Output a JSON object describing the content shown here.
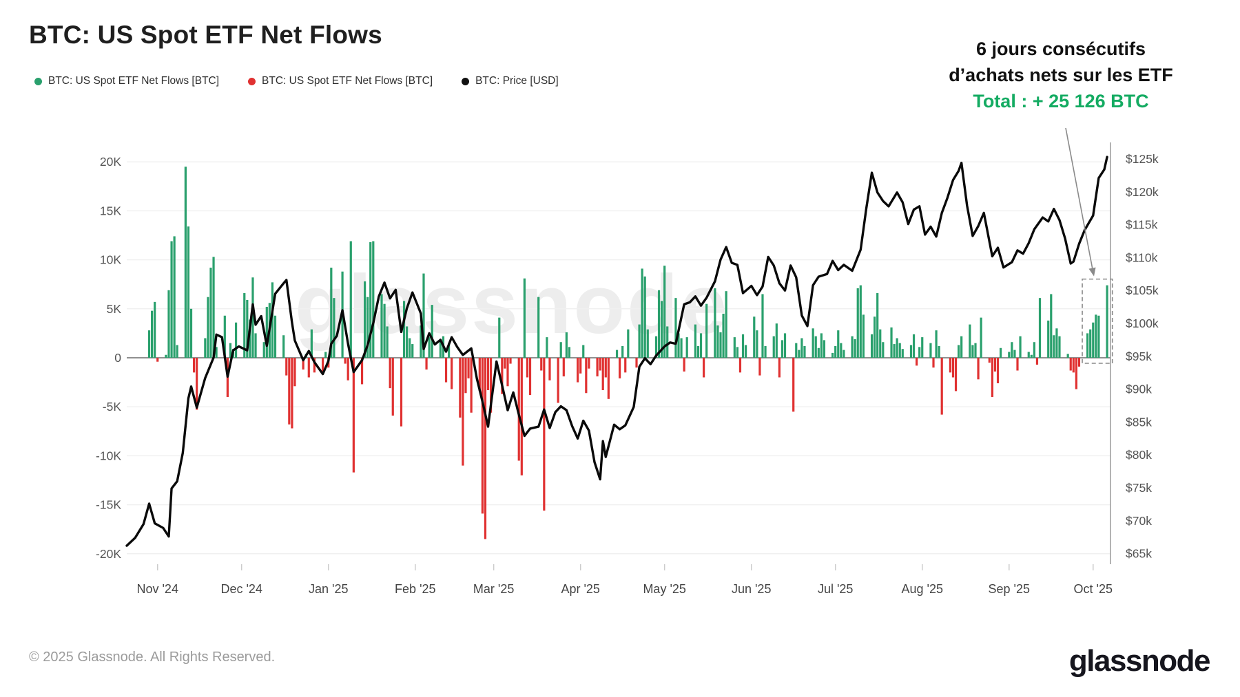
{
  "header": {
    "title": "BTC: US Spot ETF Net Flows"
  },
  "legend": [
    {
      "label": "BTC: US Spot ETF Net Flows [BTC]",
      "color": "#2aa06d",
      "icon": "green-dot"
    },
    {
      "label": "BTC: US Spot ETF Net Flows [BTC]",
      "color": "#e03131",
      "icon": "red-dot"
    },
    {
      "label": "BTC: Price [USD]",
      "color": "#111111",
      "icon": "black-dot"
    }
  ],
  "annotation": {
    "line1": "6 jours consécutifs",
    "line2": "d’achats nets sur les ETF",
    "line3": "Total : + 25 126 BTC",
    "highlight_color": "#14ab62"
  },
  "watermark": "glassnode",
  "footer": {
    "copyright": "© 2025 Glassnode. All Rights Reserved.",
    "logo": "glassnode"
  },
  "chart_data": {
    "type": "bar+line",
    "title": "BTC: US Spot ETF Net Flows",
    "x_axis": {
      "labels": [
        "Nov '24",
        "Dec '24",
        "Jan '25",
        "Feb '25",
        "Mar '25",
        "Apr '25",
        "May '25",
        "Jun '25",
        "Jul '25",
        "Aug '25",
        "Sep '25",
        "Oct '25"
      ],
      "range_start": "2024-10-21",
      "range_end": "2025-10-10"
    },
    "y_axis_left": {
      "unit": "K BTC",
      "ticks": [
        "20K",
        "15K",
        "10K",
        "5K",
        "0",
        "-5K",
        "-10K",
        "-15K",
        "-20K"
      ],
      "values": [
        20,
        15,
        10,
        5,
        0,
        -5,
        -10,
        -15,
        -20
      ]
    },
    "y_axis_right": {
      "unit": "USD",
      "ticks": [
        "$125k",
        "$120k",
        "$115k",
        "$110k",
        "$105k",
        "$100k",
        "$95k",
        "$90k",
        "$85k",
        "$80k",
        "$75k",
        "$70k",
        "$65k"
      ],
      "values": [
        125,
        120,
        115,
        110,
        105,
        100,
        95,
        90,
        85,
        80,
        75,
        70,
        65
      ]
    },
    "series": [
      {
        "name": "BTC: US Spot ETF Net Flows [BTC]",
        "type": "bar",
        "unit": "K BTC per day",
        "frequency": "weekdays",
        "start_date": "2024-10-29",
        "positive_color": "#2aa06d",
        "negative_color": "#e03131",
        "values": [
          2.8,
          4.8,
          5.7,
          -0.4,
          0.3,
          6.9,
          11.9,
          12.4,
          1.3,
          19.5,
          13.4,
          5.0,
          -1.5,
          -5.3,
          2.0,
          6.2,
          9.2,
          10.3,
          1.1,
          4.3,
          -4.0,
          1.5,
          0.9,
          3.6,
          6.6,
          5.9,
          3.9,
          8.2,
          2.5,
          1.6,
          5.2,
          5.6,
          7.7,
          4.3,
          2.3,
          -1.8,
          -6.8,
          -7.2,
          -2.9,
          -1.2,
          0.4,
          -2.0,
          2.9,
          -1.5,
          -1.6,
          0.6,
          -1.0,
          9.2,
          6.1,
          8.8,
          -0.6,
          -2.3,
          11.9,
          -11.7,
          -2.7,
          7.8,
          6.2,
          11.8,
          11.9,
          6.5,
          5.5,
          3.2,
          -3.1,
          -5.9,
          -7.0,
          5.8,
          3.2,
          2.0,
          1.4,
          3.3,
          8.6,
          -1.2,
          2.1,
          5.4,
          1.8,
          2.2,
          -2.5,
          1.5,
          -3.2,
          -6.1,
          -11.0,
          -3.6,
          -2.1,
          -5.6,
          -3.4,
          -15.9,
          -18.5,
          -3.3,
          -5.6,
          4.1,
          -3.7,
          -1.1,
          -2.9,
          -0.6,
          -10.5,
          -12.0,
          8.1,
          -2.0,
          -3.8,
          6.2,
          -1.3,
          -15.6,
          2.1,
          -2.3,
          -4.6,
          1.6,
          -1.9,
          2.6,
          1.1,
          -2.5,
          -1.6,
          1.3,
          -3.6,
          -1.1,
          -1.9,
          -1.3,
          -3.3,
          -2.0,
          -4.2,
          0.8,
          -2.1,
          1.2,
          -1.5,
          2.9,
          -1.0,
          3.4,
          9.1,
          8.3,
          2.9,
          2.2,
          6.9,
          5.8,
          9.4,
          3.2,
          6.1,
          2.5,
          2.0,
          -1.4,
          2.1,
          3.4,
          1.2,
          2.5,
          -2.0,
          5.5,
          7.1,
          3.3,
          2.6,
          4.5,
          6.8,
          2.1,
          1.1,
          -1.5,
          2.4,
          1.3,
          4.2,
          2.8,
          -1.8,
          6.5,
          1.2,
          2.2,
          3.5,
          -2.0,
          1.8,
          2.5,
          -5.5,
          1.5,
          0.8,
          2.0,
          1.2,
          3.0,
          2.2,
          1.0,
          2.5,
          1.8,
          0.5,
          1.2,
          2.8,
          1.5,
          0.8,
          2.2,
          1.9,
          7.1,
          7.4,
          4.4,
          2.4,
          4.2,
          6.6,
          2.9,
          1.6,
          3.1,
          1.4,
          2.0,
          1.5,
          0.9,
          1.3,
          2.4,
          -0.8,
          1.1,
          2.1,
          1.5,
          -1.0,
          2.8,
          1.2,
          -5.8,
          -1.5,
          -2.0,
          -3.4,
          1.3,
          2.2,
          3.4,
          1.3,
          1.5,
          -2.2,
          4.1,
          -0.5,
          -4.0,
          -1.4,
          -2.6,
          1.0,
          0.6,
          1.6,
          0.8,
          -1.3,
          2.2,
          0.6,
          0.3,
          1.6,
          -0.7,
          6.1,
          3.8,
          6.5,
          2.3,
          3.0,
          2.2,
          0.4,
          -1.3,
          -1.5,
          -3.2,
          -0.9,
          2.5,
          2.9,
          3.6,
          4.4,
          4.3,
          7.4
        ]
      },
      {
        "name": "BTC: Price [USD]",
        "type": "line",
        "unit": "thousand USD",
        "color": "#0a0a0a",
        "epoch": "2024-10-21",
        "points": [
          [
            0,
            66.2
          ],
          [
            3,
            67.4
          ],
          [
            6,
            69.5
          ],
          [
            8,
            72.6
          ],
          [
            10,
            69.6
          ],
          [
            13,
            68.9
          ],
          [
            15,
            67.6
          ],
          [
            16,
            74.9
          ],
          [
            18,
            76.0
          ],
          [
            20,
            80.3
          ],
          [
            22,
            88.6
          ],
          [
            23,
            90.4
          ],
          [
            25,
            87.2
          ],
          [
            28,
            91.7
          ],
          [
            31,
            94.8
          ],
          [
            32,
            98.3
          ],
          [
            34,
            97.9
          ],
          [
            36,
            91.9
          ],
          [
            38,
            95.9
          ],
          [
            40,
            96.5
          ],
          [
            43,
            95.9
          ],
          [
            45,
            102.9
          ],
          [
            46,
            99.8
          ],
          [
            48,
            101.1
          ],
          [
            50,
            96.6
          ],
          [
            53,
            104.5
          ],
          [
            56,
            106.1
          ],
          [
            57,
            106.6
          ],
          [
            59,
            100.1
          ],
          [
            60,
            97.4
          ],
          [
            63,
            94.4
          ],
          [
            65,
            95.8
          ],
          [
            67,
            94.1
          ],
          [
            70,
            92.3
          ],
          [
            72,
            94.3
          ],
          [
            73,
            96.9
          ],
          [
            75,
            98.1
          ],
          [
            77,
            102.0
          ],
          [
            79,
            96.9
          ],
          [
            81,
            92.6
          ],
          [
            84,
            94.4
          ],
          [
            86,
            96.7
          ],
          [
            88,
            100.0
          ],
          [
            90,
            104.1
          ],
          [
            92,
            106.2
          ],
          [
            94,
            103.8
          ],
          [
            96,
            105.1
          ],
          [
            98,
            98.7
          ],
          [
            100,
            102.3
          ],
          [
            102,
            104.7
          ],
          [
            105,
            101.5
          ],
          [
            106,
            96.1
          ],
          [
            108,
            98.5
          ],
          [
            110,
            96.8
          ],
          [
            112,
            97.5
          ],
          [
            114,
            95.7
          ],
          [
            116,
            97.9
          ],
          [
            118,
            96.4
          ],
          [
            120,
            95.2
          ],
          [
            123,
            96.2
          ],
          [
            125,
            91.6
          ],
          [
            127,
            88.1
          ],
          [
            129,
            84.3
          ],
          [
            132,
            94.2
          ],
          [
            134,
            90.6
          ],
          [
            136,
            86.8
          ],
          [
            138,
            89.5
          ],
          [
            140,
            86.1
          ],
          [
            142,
            82.9
          ],
          [
            144,
            84.0
          ],
          [
            147,
            84.3
          ],
          [
            149,
            86.9
          ],
          [
            151,
            84.1
          ],
          [
            153,
            86.5
          ],
          [
            155,
            87.4
          ],
          [
            157,
            86.8
          ],
          [
            159,
            84.4
          ],
          [
            161,
            82.5
          ],
          [
            163,
            85.2
          ],
          [
            165,
            83.7
          ],
          [
            167,
            78.9
          ],
          [
            169,
            76.3
          ],
          [
            170,
            82.1
          ],
          [
            171,
            79.7
          ],
          [
            174,
            84.6
          ],
          [
            176,
            83.9
          ],
          [
            178,
            84.5
          ],
          [
            181,
            87.3
          ],
          [
            183,
            93.4
          ],
          [
            185,
            94.7
          ],
          [
            187,
            93.8
          ],
          [
            189,
            95.1
          ],
          [
            192,
            96.5
          ],
          [
            194,
            97.1
          ],
          [
            196,
            96.9
          ],
          [
            199,
            102.9
          ],
          [
            201,
            103.2
          ],
          [
            203,
            104.1
          ],
          [
            205,
            102.7
          ],
          [
            207,
            103.9
          ],
          [
            210,
            106.4
          ],
          [
            212,
            109.7
          ],
          [
            214,
            111.6
          ],
          [
            216,
            109.2
          ],
          [
            218,
            108.9
          ],
          [
            220,
            104.6
          ],
          [
            223,
            105.7
          ],
          [
            225,
            104.3
          ],
          [
            227,
            105.6
          ],
          [
            229,
            110.1
          ],
          [
            231,
            108.8
          ],
          [
            233,
            106.1
          ],
          [
            235,
            105.0
          ],
          [
            237,
            108.8
          ],
          [
            239,
            107.0
          ],
          [
            241,
            101.2
          ],
          [
            243,
            99.6
          ],
          [
            245,
            105.8
          ],
          [
            247,
            107.1
          ],
          [
            250,
            107.5
          ],
          [
            252,
            109.5
          ],
          [
            254,
            108.1
          ],
          [
            256,
            108.9
          ],
          [
            259,
            108.0
          ],
          [
            262,
            111.2
          ],
          [
            264,
            117.4
          ],
          [
            266,
            122.9
          ],
          [
            268,
            119.9
          ],
          [
            270,
            118.6
          ],
          [
            272,
            117.8
          ],
          [
            275,
            119.9
          ],
          [
            277,
            118.4
          ],
          [
            279,
            115.1
          ],
          [
            281,
            117.3
          ],
          [
            283,
            117.8
          ],
          [
            285,
            113.5
          ],
          [
            287,
            114.7
          ],
          [
            289,
            113.2
          ],
          [
            291,
            116.8
          ],
          [
            293,
            119.1
          ],
          [
            295,
            121.8
          ],
          [
            297,
            123.2
          ],
          [
            298,
            124.4
          ],
          [
            300,
            117.9
          ],
          [
            302,
            113.3
          ],
          [
            304,
            114.8
          ],
          [
            306,
            116.8
          ],
          [
            309,
            110.2
          ],
          [
            311,
            111.5
          ],
          [
            313,
            108.5
          ],
          [
            316,
            109.3
          ],
          [
            318,
            111.1
          ],
          [
            320,
            110.6
          ],
          [
            322,
            112.2
          ],
          [
            324,
            114.3
          ],
          [
            327,
            116.1
          ],
          [
            329,
            115.5
          ],
          [
            331,
            117.4
          ],
          [
            333,
            115.7
          ],
          [
            335,
            112.9
          ],
          [
            337,
            109.1
          ],
          [
            338,
            109.4
          ],
          [
            340,
            112.1
          ],
          [
            342,
            114.2
          ],
          [
            345,
            116.4
          ],
          [
            347,
            122.1
          ],
          [
            349,
            123.4
          ],
          [
            350,
            125.3
          ]
        ]
      }
    ],
    "highlight": {
      "last_n_bars": 6,
      "total_label": "+ 25 126 BTC",
      "total_btc": 25126
    },
    "grid": true,
    "legend_position": "top-left"
  }
}
